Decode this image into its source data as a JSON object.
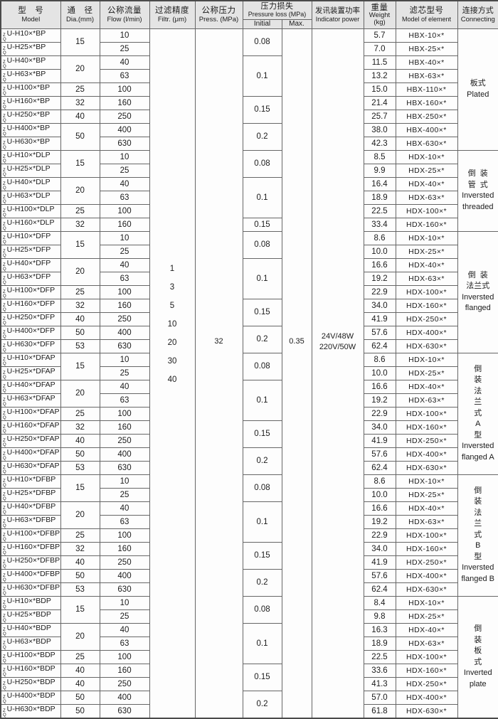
{
  "colors": {
    "header_bg": "#e4e4e4",
    "border": "#666666",
    "body_bg": "#fdfdfd",
    "text": "#1b1b1b"
  },
  "header": {
    "model": {
      "zh": "型　号",
      "en": "Model"
    },
    "dia": {
      "zh": "通　径",
      "en": "Dia.(mm)"
    },
    "flow": {
      "zh": "公称流量",
      "en": "Flow (l/min)"
    },
    "filtr": {
      "zh": "过滤精度",
      "en": "Filtr. (μm)"
    },
    "press": {
      "zh": "公称压力",
      "en": "Press. (MPa)"
    },
    "ploss": {
      "zh": "压力损失",
      "en": "Pressure loss (MPa)",
      "sub": [
        "Initial",
        "Max."
      ]
    },
    "indicator": {
      "zh": "发讯装置功率",
      "en": "Indicator power"
    },
    "weight": {
      "zh": "重量",
      "en": "Weight",
      "unit": "(kg)"
    },
    "element": {
      "zh": "滤芯型号",
      "en": "Model of element"
    },
    "connecting": {
      "zh": "连接方式",
      "en": "Connecting"
    }
  },
  "shared": {
    "model_prefix": [
      "Z",
      "Q"
    ],
    "filtration_um": [
      "1",
      "3",
      "5",
      "10",
      "20",
      "30",
      "40"
    ],
    "press_mpa": "32",
    "ploss_max": "0.35",
    "indicator_power": [
      "24V/48W",
      "220V/50W"
    ]
  },
  "groups": [
    {
      "connecting": [
        "板式",
        "Plated"
      ],
      "dia": [
        {
          "value": "15",
          "span": 2
        },
        {
          "value": "20",
          "span": 2
        },
        {
          "value": "25",
          "span": 1
        },
        {
          "value": "32",
          "span": 1
        },
        {
          "value": "40",
          "span": 1
        },
        {
          "value": "50",
          "span": 2
        }
      ],
      "initial": [
        {
          "value": "0.08",
          "span": 2
        },
        {
          "value": "0.1",
          "span": 3
        },
        {
          "value": "0.15",
          "span": 2
        },
        {
          "value": "0.2",
          "span": 2
        }
      ],
      "rows": [
        {
          "model": "U-H10×*BP",
          "flow": "10",
          "weight": "5.7",
          "element": "HBX-10×*"
        },
        {
          "model": "U-H25×*BP",
          "flow": "25",
          "weight": "7.0",
          "element": "HBX-25×*"
        },
        {
          "model": "U-H40×*BP",
          "flow": "40",
          "weight": "11.5",
          "element": "HBX-40×*"
        },
        {
          "model": "U-H63×*BP",
          "flow": "63",
          "weight": "13.2",
          "element": "HBX-63×*"
        },
        {
          "model": "U-H100×*BP",
          "flow": "100",
          "weight": "15.0",
          "element": "HBX-110×*"
        },
        {
          "model": "U-H160×*BP",
          "flow": "160",
          "weight": "21.4",
          "element": "HBX-160×*"
        },
        {
          "model": "U-H250×*BP",
          "flow": "250",
          "weight": "25.7",
          "element": "HBX-250×*"
        },
        {
          "model": "U-H400×*BP",
          "flow": "400",
          "weight": "38.0",
          "element": "HBX-400×*"
        },
        {
          "model": "U-H630×*BP",
          "flow": "630",
          "weight": "42.3",
          "element": "HBX-630×*"
        }
      ]
    },
    {
      "connecting": [
        "倒  装",
        "管  式",
        "Inversted",
        "threaded"
      ],
      "dia": [
        {
          "value": "15",
          "span": 2
        },
        {
          "value": "20",
          "span": 2
        },
        {
          "value": "25",
          "span": 1
        },
        {
          "value": "32",
          "span": 1
        }
      ],
      "initial": [
        {
          "value": "0.08",
          "span": 2
        },
        {
          "value": "0.1",
          "span": 3
        },
        {
          "value": "0.15",
          "span": 1
        }
      ],
      "rows": [
        {
          "model": "U-H10×*DLP",
          "flow": "10",
          "weight": "8.5",
          "element": "HDX-10×*"
        },
        {
          "model": "U-H25×*DLP",
          "flow": "25",
          "weight": "9.9",
          "element": "HDX-25×*"
        },
        {
          "model": "U-H40×*DLP",
          "flow": "40",
          "weight": "16.4",
          "element": "HDX-40×*"
        },
        {
          "model": "U-H63×*DLP",
          "flow": "63",
          "weight": "18.9",
          "element": "HDX-63×*"
        },
        {
          "model": "U-H100×*DLP",
          "flow": "100",
          "weight": "22.5",
          "element": "HDX-100×*"
        },
        {
          "model": "U-H160×*DLP",
          "flow": "160",
          "weight": "33.4",
          "element": "HDX-160×*"
        }
      ]
    },
    {
      "connecting": [
        "倒  装",
        "法兰式",
        "Inversted",
        "flanged"
      ],
      "dia": [
        {
          "value": "15",
          "span": 2
        },
        {
          "value": "20",
          "span": 2
        },
        {
          "value": "25",
          "span": 1
        },
        {
          "value": "32",
          "span": 1
        },
        {
          "value": "40",
          "span": 1
        },
        {
          "value": "50",
          "span": 1
        },
        {
          "value": "53",
          "span": 1
        }
      ],
      "initial": [
        {
          "value": "0.08",
          "span": 2
        },
        {
          "value": "0.1",
          "span": 3
        },
        {
          "value": "0.15",
          "span": 2
        },
        {
          "value": "0.2",
          "span": 2
        }
      ],
      "rows": [
        {
          "model": "U-H10×*DFP",
          "flow": "10",
          "weight": "8.6",
          "element": "HDX-10×*"
        },
        {
          "model": "U-H25×*DFP",
          "flow": "25",
          "weight": "10.0",
          "element": "HDX-25×*"
        },
        {
          "model": "U-H40×*DFP",
          "flow": "40",
          "weight": "16.6",
          "element": "HDX-40×*"
        },
        {
          "model": "U-H63×*DFP",
          "flow": "63",
          "weight": "19.2",
          "element": "HDX-63×*"
        },
        {
          "model": "U-H100×*DFP",
          "flow": "100",
          "weight": "22.9",
          "element": "HDX-100×*"
        },
        {
          "model": "U-H160×*DFP",
          "flow": "160",
          "weight": "34.0",
          "element": "HDX-160×*"
        },
        {
          "model": "U-H250×*DFP",
          "flow": "250",
          "weight": "41.9",
          "element": "HDX-250×*"
        },
        {
          "model": "U-H400×*DFP",
          "flow": "400",
          "weight": "57.6",
          "element": "HDX-400×*"
        },
        {
          "model": "U-H630×*DFP",
          "flow": "630",
          "weight": "62.4",
          "element": "HDX-630×*"
        }
      ]
    },
    {
      "connecting": [
        "倒",
        "装",
        "法",
        "兰",
        "式",
        "A",
        "型",
        "Inversted",
        "flanged A"
      ],
      "dia": [
        {
          "value": "15",
          "span": 2
        },
        {
          "value": "20",
          "span": 2
        },
        {
          "value": "25",
          "span": 1
        },
        {
          "value": "32",
          "span": 1
        },
        {
          "value": "40",
          "span": 1
        },
        {
          "value": "50",
          "span": 1
        },
        {
          "value": "53",
          "span": 1
        }
      ],
      "initial": [
        {
          "value": "0.08",
          "span": 2
        },
        {
          "value": "0.1",
          "span": 3
        },
        {
          "value": "0.15",
          "span": 2
        },
        {
          "value": "0.2",
          "span": 2
        }
      ],
      "rows": [
        {
          "model": "U-H10×*DFAP",
          "flow": "10",
          "weight": "8.6",
          "element": "HDX-10×*"
        },
        {
          "model": "U-H25×*DFAP",
          "flow": "25",
          "weight": "10.0",
          "element": "HDX-25×*"
        },
        {
          "model": "U-H40×*DFAP",
          "flow": "40",
          "weight": "16.6",
          "element": "HDX-40×*"
        },
        {
          "model": "U-H63×*DFAP",
          "flow": "63",
          "weight": "19.2",
          "element": "HDX-63×*"
        },
        {
          "model": "U-H100×*DFAP",
          "flow": "100",
          "weight": "22.9",
          "element": "HDX-100×*"
        },
        {
          "model": "U-H160×*DFAP",
          "flow": "160",
          "weight": "34.0",
          "element": "HDX-160×*"
        },
        {
          "model": "U-H250×*DFAP",
          "flow": "250",
          "weight": "41.9",
          "element": "HDX-250×*"
        },
        {
          "model": "U-H400×*DFAP",
          "flow": "400",
          "weight": "57.6",
          "element": "HDX-400×*"
        },
        {
          "model": "U-H630×*DFAP",
          "flow": "630",
          "weight": "62.4",
          "element": "HDX-630×*"
        }
      ]
    },
    {
      "connecting": [
        "倒",
        "装",
        "法",
        "兰",
        "式",
        "B",
        "型",
        "Inversted",
        "flanged B"
      ],
      "dia": [
        {
          "value": "15",
          "span": 2
        },
        {
          "value": "20",
          "span": 2
        },
        {
          "value": "25",
          "span": 1
        },
        {
          "value": "32",
          "span": 1
        },
        {
          "value": "40",
          "span": 1
        },
        {
          "value": "50",
          "span": 1
        },
        {
          "value": "53",
          "span": 1
        }
      ],
      "initial": [
        {
          "value": "0.08",
          "span": 2
        },
        {
          "value": "0.1",
          "span": 3
        },
        {
          "value": "0.15",
          "span": 2
        },
        {
          "value": "0.2",
          "span": 2
        }
      ],
      "rows": [
        {
          "model": "U-H10×*DFBP",
          "flow": "10",
          "weight": "8.6",
          "element": "HDX-10×*"
        },
        {
          "model": "U-H25×*DFBP",
          "flow": "25",
          "weight": "10.0",
          "element": "HDX-25×*"
        },
        {
          "model": "U-H40×*DFBP",
          "flow": "40",
          "weight": "16.6",
          "element": "HDX-40×*"
        },
        {
          "model": "U-H63×*DFBP",
          "flow": "63",
          "weight": "19.2",
          "element": "HDX-63×*"
        },
        {
          "model": "U-H100×*DFBP",
          "flow": "100",
          "weight": "22.9",
          "element": "HDX-100×*"
        },
        {
          "model": "U-H160×*DFBP",
          "flow": "160",
          "weight": "34.0",
          "element": "HDX-160×*"
        },
        {
          "model": "U-H250×*DFBP",
          "flow": "250",
          "weight": "41.9",
          "element": "HDX-250×*"
        },
        {
          "model": "U-H400×*DFBP",
          "flow": "400",
          "weight": "57.6",
          "element": "HDX-400×*"
        },
        {
          "model": "U-H630×*DFBP",
          "flow": "630",
          "weight": "62.4",
          "element": "HDX-630×*"
        }
      ]
    },
    {
      "connecting": [
        "倒",
        "装",
        "板",
        "式",
        "Inverted",
        "plate"
      ],
      "dia": [
        {
          "value": "15",
          "span": 2
        },
        {
          "value": "20",
          "span": 2
        },
        {
          "value": "25",
          "span": 1
        },
        {
          "value": "40",
          "span": 1
        },
        {
          "value": "40",
          "span": 1
        },
        {
          "value": "50",
          "span": 1
        },
        {
          "value": "50",
          "span": 1
        }
      ],
      "initial": [
        {
          "value": "0.08",
          "span": 2
        },
        {
          "value": "0.1",
          "span": 3
        },
        {
          "value": "0.15",
          "span": 2
        },
        {
          "value": "0.2",
          "span": 2
        }
      ],
      "rows": [
        {
          "model": "U-H10×*BDP",
          "flow": "10",
          "weight": "8.4",
          "element": "HDX-10×*"
        },
        {
          "model": "U-H25×*BDP",
          "flow": "25",
          "weight": "9.8",
          "element": "HDX-25×*"
        },
        {
          "model": "U-H40×*BDP",
          "flow": "40",
          "weight": "16.3",
          "element": "HDX-40×*"
        },
        {
          "model": "U-H63×*BDP",
          "flow": "63",
          "weight": "18.9",
          "element": "HDX-63×*"
        },
        {
          "model": "U-H100×*BDP",
          "flow": "100",
          "weight": "22.5",
          "element": "HDX-100×*"
        },
        {
          "model": "U-H160×*BDP",
          "flow": "160",
          "weight": "33.6",
          "element": "HDX-160×*"
        },
        {
          "model": "U-H250×*BDP",
          "flow": "250",
          "weight": "41.3",
          "element": "HDX-250×*"
        },
        {
          "model": "U-H400×*BDP",
          "flow": "400",
          "weight": "57.0",
          "element": "HDX-400×*"
        },
        {
          "model": "U-H630×*BDP",
          "flow": "630",
          "weight": "61.8",
          "element": "HDX-630×*"
        }
      ]
    }
  ]
}
